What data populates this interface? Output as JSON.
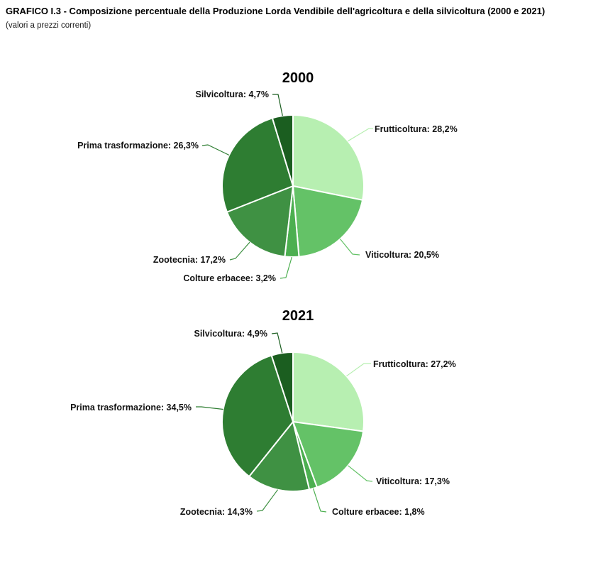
{
  "header": {
    "title": "GRAFICO I.3 - Composizione percentuale della Produzione Lorda Vendibile dell'agricoltura e della silvicoltura (2000 e 2021)",
    "subtitle": "(valori a prezzi correnti)"
  },
  "palette": {
    "frutticoltura": "#b7efb1",
    "viticoltura": "#64c267",
    "colture_erbacee": "#4caf50",
    "zootecnia": "#3f9143",
    "prima_trasformazione": "#2e7d32",
    "silvicoltura": "#1b5e20"
  },
  "chart_data": [
    {
      "type": "pie",
      "title": "2000",
      "start_angle_deg": 0,
      "direction": "clockwise",
      "legend": "none",
      "slices": [
        {
          "label": "Frutticoltura",
          "value": 28.2,
          "display": "Frutticoltura: 28,2%",
          "color": "#b7efb1"
        },
        {
          "label": "Viticoltura",
          "value": 20.5,
          "display": "Viticoltura: 20,5%",
          "color": "#64c267"
        },
        {
          "label": "Colture erbacee",
          "value": 3.2,
          "display": "Colture erbacee: 3,2%",
          "color": "#4caf50"
        },
        {
          "label": "Zootecnia",
          "value": 17.2,
          "display": "Zootecnia: 17,2%",
          "color": "#3f9143"
        },
        {
          "label": "Prima trasformazione",
          "value": 26.3,
          "display": "Prima trasformazione: 26,3%",
          "color": "#2e7d32"
        },
        {
          "label": "Silvicoltura",
          "value": 4.7,
          "display": "Silvicoltura: 4,7%",
          "color": "#1b5e20"
        }
      ]
    },
    {
      "type": "pie",
      "title": "2021",
      "start_angle_deg": 0,
      "direction": "clockwise",
      "legend": "none",
      "slices": [
        {
          "label": "Frutticoltura",
          "value": 27.2,
          "display": "Frutticoltura: 27,2%",
          "color": "#b7efb1"
        },
        {
          "label": "Viticoltura",
          "value": 17.3,
          "display": "Viticoltura: 17,3%",
          "color": "#64c267"
        },
        {
          "label": "Colture erbacee",
          "value": 1.8,
          "display": "Colture erbacee: 1,8%",
          "color": "#4caf50"
        },
        {
          "label": "Zootecnia",
          "value": 14.3,
          "display": "Zootecnia: 14,3%",
          "color": "#3f9143"
        },
        {
          "label": "Prima trasformazione",
          "value": 34.5,
          "display": "Prima trasformazione: 34,5%",
          "color": "#2e7d32"
        },
        {
          "label": "Silvicoltura",
          "value": 4.9,
          "display": "Silvicoltura: 4,9%",
          "color": "#1b5e20"
        }
      ]
    }
  ]
}
